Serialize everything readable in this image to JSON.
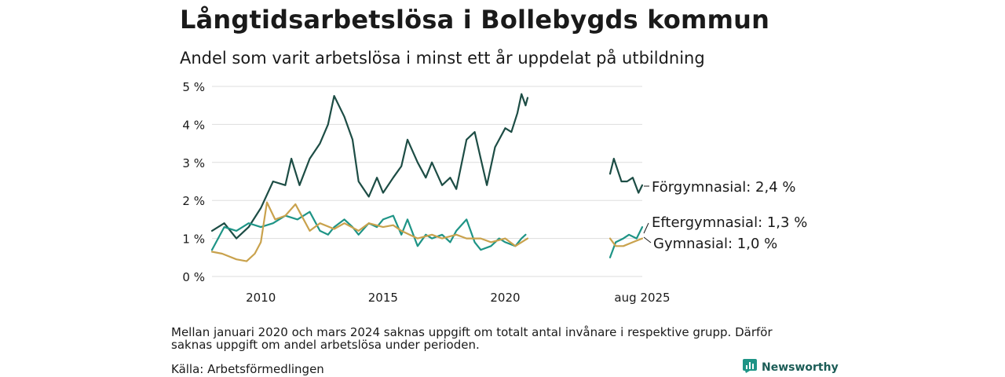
{
  "title": "Långtidsarbetslösa i Bollebygds kommun",
  "subtitle": "Andel som varit arbetslösa i minst ett år uppdelat på utbildning",
  "note": "Mellan januari 2020 och mars 2024 saknas uppgift om totalt antal invånare i respektive grupp. Därför saknas uppgift om andel arbetslösa under perioden.",
  "source": "Källa: Arbetsförmedlingen",
  "brand": {
    "name": "Newsworthy",
    "icon": "newsworthy-logo-icon"
  },
  "colors": {
    "forgymnasial": "#1d4d45",
    "eftergymnasial": "#1e9486",
    "gymnasial": "#c9a24d",
    "grid": "#dddddd"
  },
  "chart_data": {
    "type": "line",
    "title": "Långtidsarbetslösa i Bollebygds kommun",
    "subtitle": "Andel som varit arbetslösa i minst ett år uppdelat på utbildning",
    "xlabel": "",
    "ylabel": "",
    "ylim": [
      0,
      5
    ],
    "y_ticks": [
      0,
      1,
      2,
      3,
      4,
      5
    ],
    "y_tick_labels": [
      "0 %",
      "1 %",
      "2 %",
      "3 %",
      "4 %",
      "5 %"
    ],
    "x_range": [
      "2008-01",
      "2025-08"
    ],
    "x_ticks": [
      {
        "x": "2010-01",
        "label": "2010"
      },
      {
        "x": "2015-01",
        "label": "2015"
      },
      {
        "x": "2020-01",
        "label": "2020"
      },
      {
        "x": "2025-08",
        "label": "aug 2025"
      }
    ],
    "x_gap": [
      "2020-12",
      "2024-03"
    ],
    "grid": true,
    "legend": "direct labels at line ends",
    "series": [
      {
        "name": "Förgymnasial",
        "end_label": "Förgymnasial: 2,4 %",
        "points": [
          [
            "2008-01",
            1.2
          ],
          [
            "2008-07",
            1.4
          ],
          [
            "2009-01",
            1.0
          ],
          [
            "2009-07",
            1.3
          ],
          [
            "2010-01",
            1.8
          ],
          [
            "2010-07",
            2.5
          ],
          [
            "2011-01",
            2.4
          ],
          [
            "2011-04",
            3.1
          ],
          [
            "2011-08",
            2.4
          ],
          [
            "2012-01",
            3.1
          ],
          [
            "2012-06",
            3.5
          ],
          [
            "2012-10",
            4.0
          ],
          [
            "2013-01",
            4.75
          ],
          [
            "2013-06",
            4.2
          ],
          [
            "2013-10",
            3.6
          ],
          [
            "2014-01",
            2.5
          ],
          [
            "2014-06",
            2.1
          ],
          [
            "2014-10",
            2.6
          ],
          [
            "2015-01",
            2.2
          ],
          [
            "2015-06",
            2.6
          ],
          [
            "2015-10",
            2.9
          ],
          [
            "2016-01",
            3.6
          ],
          [
            "2016-06",
            3.0
          ],
          [
            "2016-10",
            2.6
          ],
          [
            "2017-01",
            3.0
          ],
          [
            "2017-06",
            2.4
          ],
          [
            "2017-10",
            2.6
          ],
          [
            "2018-01",
            2.3
          ],
          [
            "2018-06",
            3.6
          ],
          [
            "2018-10",
            3.8
          ],
          [
            "2019-01",
            3.1
          ],
          [
            "2019-04",
            2.4
          ],
          [
            "2019-08",
            3.4
          ],
          [
            "2020-01",
            3.9
          ],
          [
            "2020-04",
            3.8
          ],
          [
            "2020-07",
            4.3
          ],
          [
            "2020-09",
            4.8
          ],
          [
            "2020-11",
            4.5
          ],
          [
            "2020-12",
            4.7
          ],
          null,
          [
            "2024-03",
            2.7
          ],
          [
            "2024-05",
            3.1
          ],
          [
            "2024-09",
            2.5
          ],
          [
            "2024-12",
            2.5
          ],
          [
            "2025-03",
            2.6
          ],
          [
            "2025-06",
            2.2
          ],
          [
            "2025-08",
            2.4
          ]
        ]
      },
      {
        "name": "Eftergymnasial",
        "end_label": "Eftergymnasial: 1,3 %",
        "points": [
          [
            "2008-01",
            0.7
          ],
          [
            "2008-07",
            1.3
          ],
          [
            "2009-01",
            1.2
          ],
          [
            "2009-07",
            1.4
          ],
          [
            "2010-01",
            1.3
          ],
          [
            "2010-07",
            1.4
          ],
          [
            "2011-01",
            1.6
          ],
          [
            "2011-07",
            1.5
          ],
          [
            "2012-01",
            1.7
          ],
          [
            "2012-06",
            1.2
          ],
          [
            "2012-10",
            1.1
          ],
          [
            "2013-01",
            1.3
          ],
          [
            "2013-06",
            1.5
          ],
          [
            "2013-10",
            1.3
          ],
          [
            "2014-01",
            1.1
          ],
          [
            "2014-06",
            1.4
          ],
          [
            "2014-10",
            1.3
          ],
          [
            "2015-01",
            1.5
          ],
          [
            "2015-06",
            1.6
          ],
          [
            "2015-10",
            1.1
          ],
          [
            "2016-01",
            1.5
          ],
          [
            "2016-06",
            0.8
          ],
          [
            "2016-10",
            1.1
          ],
          [
            "2017-01",
            1.0
          ],
          [
            "2017-06",
            1.1
          ],
          [
            "2017-10",
            0.9
          ],
          [
            "2018-01",
            1.2
          ],
          [
            "2018-06",
            1.5
          ],
          [
            "2018-10",
            0.9
          ],
          [
            "2019-01",
            0.7
          ],
          [
            "2019-06",
            0.8
          ],
          [
            "2019-10",
            1.0
          ],
          [
            "2020-01",
            0.9
          ],
          [
            "2020-06",
            0.8
          ],
          [
            "2020-09",
            1.0
          ],
          [
            "2020-11",
            1.1
          ],
          null,
          [
            "2024-03",
            0.5
          ],
          [
            "2024-06",
            0.9
          ],
          [
            "2024-10",
            1.0
          ],
          [
            "2025-01",
            1.1
          ],
          [
            "2025-05",
            1.0
          ],
          [
            "2025-08",
            1.3
          ]
        ]
      },
      {
        "name": "Gymnasial",
        "end_label": "Gymnasial: 1,0 %",
        "points": [
          [
            "2008-01",
            0.65
          ],
          [
            "2008-06",
            0.6
          ],
          [
            "2009-01",
            0.45
          ],
          [
            "2009-06",
            0.4
          ],
          [
            "2009-10",
            0.6
          ],
          [
            "2010-01",
            0.9
          ],
          [
            "2010-04",
            1.95
          ],
          [
            "2010-08",
            1.5
          ],
          [
            "2011-01",
            1.6
          ],
          [
            "2011-06",
            1.9
          ],
          [
            "2012-01",
            1.2
          ],
          [
            "2012-06",
            1.4
          ],
          [
            "2013-01",
            1.25
          ],
          [
            "2013-06",
            1.4
          ],
          [
            "2014-01",
            1.2
          ],
          [
            "2014-06",
            1.4
          ],
          [
            "2015-01",
            1.3
          ],
          [
            "2015-06",
            1.35
          ],
          [
            "2015-10",
            1.2
          ],
          [
            "2016-06",
            1.0
          ],
          [
            "2017-01",
            1.1
          ],
          [
            "2017-06",
            1.0
          ],
          [
            "2018-01",
            1.1
          ],
          [
            "2018-06",
            1.0
          ],
          [
            "2019-01",
            1.0
          ],
          [
            "2019-06",
            0.9
          ],
          [
            "2020-01",
            1.0
          ],
          [
            "2020-06",
            0.8
          ],
          [
            "2020-12",
            1.0
          ],
          null,
          [
            "2024-03",
            1.0
          ],
          [
            "2024-06",
            0.8
          ],
          [
            "2024-10",
            0.8
          ],
          [
            "2025-03",
            0.9
          ],
          [
            "2025-08",
            1.0
          ]
        ]
      }
    ]
  }
}
